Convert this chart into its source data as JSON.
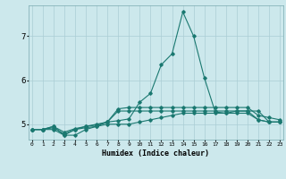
{
  "xlabel": "Humidex (Indice chaleur)",
  "bg_color": "#cce8ec",
  "grid_color": "#aacdd4",
  "line_color": "#1a7870",
  "x_ticks": [
    0,
    1,
    2,
    3,
    4,
    5,
    6,
    7,
    8,
    9,
    10,
    11,
    12,
    13,
    14,
    15,
    16,
    17,
    18,
    19,
    20,
    21,
    22,
    23
  ],
  "y_ticks": [
    5,
    6,
    7
  ],
  "ylim": [
    4.65,
    7.7
  ],
  "xlim": [
    -0.3,
    23.3
  ],
  "lines": [
    [
      4.88,
      4.88,
      4.88,
      4.75,
      4.75,
      4.88,
      4.95,
      5.0,
      5.0,
      5.0,
      5.05,
      5.1,
      5.15,
      5.2,
      5.25,
      5.25,
      5.25,
      5.25,
      5.25,
      5.25,
      5.25,
      5.1,
      5.05,
      5.05
    ],
    [
      4.88,
      4.88,
      4.95,
      4.75,
      4.88,
      4.92,
      4.95,
      5.05,
      5.3,
      5.3,
      5.3,
      5.3,
      5.3,
      5.3,
      5.3,
      5.3,
      5.3,
      5.3,
      5.3,
      5.3,
      5.3,
      5.1,
      5.05,
      5.05
    ],
    [
      4.88,
      4.88,
      4.92,
      4.78,
      4.88,
      4.95,
      5.0,
      5.05,
      5.35,
      5.38,
      5.38,
      5.38,
      5.38,
      5.38,
      5.38,
      5.38,
      5.38,
      5.38,
      5.38,
      5.38,
      5.38,
      5.2,
      5.15,
      5.1
    ],
    [
      4.88,
      4.88,
      4.95,
      4.82,
      4.9,
      4.95,
      4.98,
      5.05,
      5.08,
      5.12,
      5.5,
      5.7,
      6.35,
      6.6,
      7.55,
      7.0,
      6.05,
      5.28,
      5.25,
      5.3,
      5.3,
      5.3,
      5.05,
      5.05
    ]
  ]
}
